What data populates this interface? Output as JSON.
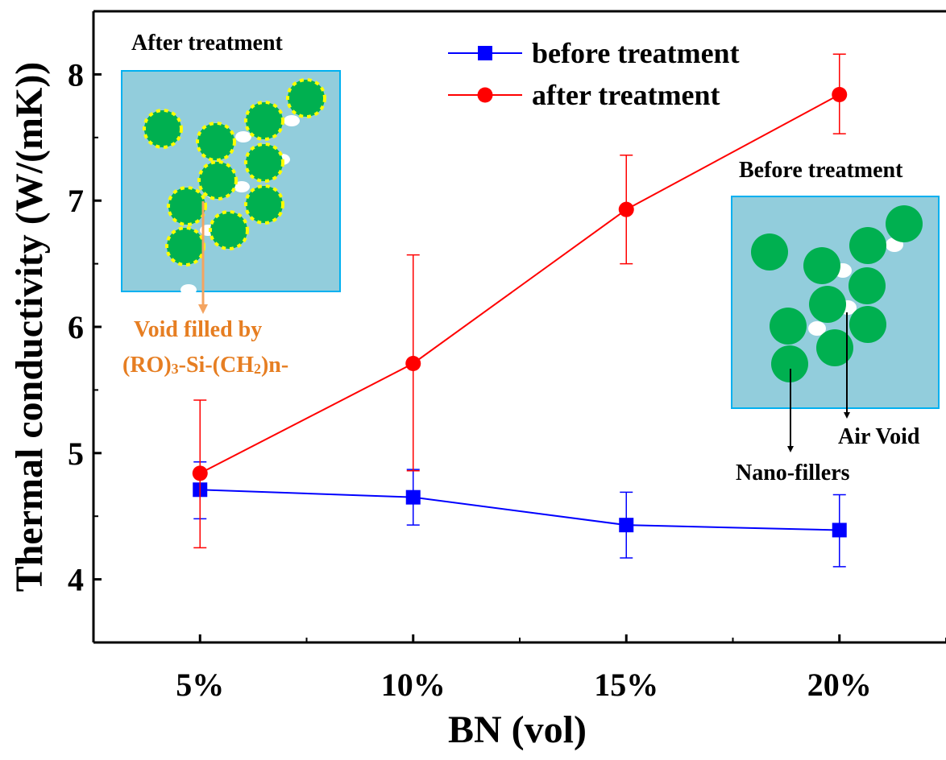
{
  "chart_data": {
    "type": "line",
    "categories": [
      "5%",
      "10%",
      "15%",
      "20%"
    ],
    "x": [
      5,
      10,
      15,
      20
    ],
    "xlabel": "BN (vol)",
    "ylabel": "Thermal conductivity (W/(mK))",
    "xlim": [
      2.5,
      22.5
    ],
    "ylim": [
      3.5,
      8.5
    ],
    "yticks": [
      4,
      5,
      6,
      7,
      8
    ],
    "grid": false,
    "legend_position": "top-center",
    "series": [
      {
        "name": "before treatment",
        "color": "#0000ff",
        "marker": "square",
        "values": [
          4.71,
          4.65,
          4.43,
          4.39
        ],
        "err_low": [
          4.48,
          4.43,
          4.17,
          4.1
        ],
        "err_high": [
          4.93,
          4.87,
          4.69,
          4.67
        ]
      },
      {
        "name": "after treatment",
        "color": "#ff0000",
        "marker": "circle",
        "values": [
          4.84,
          5.71,
          6.93,
          7.84
        ],
        "err_low": [
          4.25,
          4.86,
          6.5,
          7.53
        ],
        "err_high": [
          5.42,
          6.57,
          7.36,
          8.16
        ]
      }
    ]
  },
  "insets": {
    "after": {
      "title": "After treatment",
      "note_line1": "Void filled by",
      "note_line2": "(RO)",
      "note_sub1": "3",
      "note_mid": "-Si-(CH",
      "note_sub2": "2",
      "note_end": ")n-"
    },
    "before": {
      "title": "Before treatment",
      "label_air": "Air Void",
      "label_nano": "Nano-fillers"
    }
  },
  "colors": {
    "inset_bg": "#92cddc",
    "inset_border": "#00b0f0",
    "particle": "#00b050",
    "shell": "#ffff00",
    "arrow_orange": "#f4a460"
  }
}
